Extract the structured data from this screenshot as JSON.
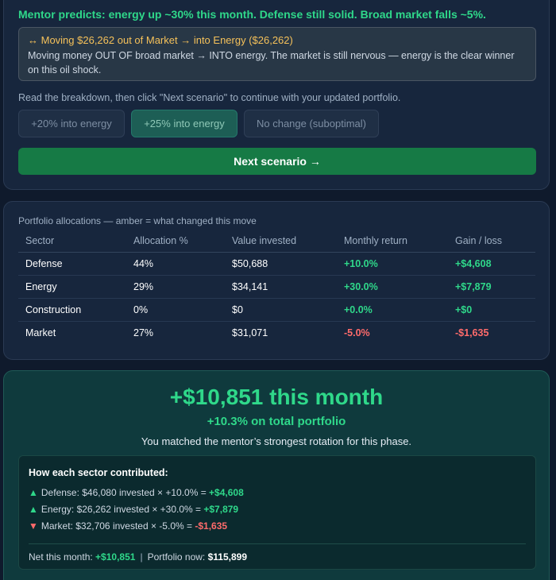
{
  "mentor": {
    "headline": "Mentor predicts: energy up ~30% this month. Defense still solid. Broad market falls ~5%."
  },
  "move": {
    "title": "↔ Moving $26,262 out of Market → into Energy ($26,262)",
    "body": "Moving money OUT OF broad market → INTO energy. The market is still nervous — energy is the clear winner on this oil shock."
  },
  "instruction": "Read the breakdown, then click \"Next scenario\" to continue with your updated portfolio.",
  "choices": [
    {
      "label": "+20% into energy",
      "selected": false
    },
    {
      "label": "+25% into energy",
      "selected": true
    },
    {
      "label": "No change (suboptimal)",
      "selected": false
    }
  ],
  "next_button": "Next scenario →",
  "table": {
    "caption": "Portfolio allocations — amber = what changed this move",
    "headers": [
      "Sector",
      "Allocation %",
      "Value invested",
      "Monthly return",
      "Gain / loss"
    ],
    "rows": [
      {
        "sector": "Defense",
        "allocation": "44%",
        "value": "$50,688",
        "return": "+10.0%",
        "gain": "+$4,608"
      },
      {
        "sector": "Energy",
        "allocation": "29%",
        "value": "$34,141",
        "return": "+30.0%",
        "gain": "+$7,879"
      },
      {
        "sector": "Construction",
        "allocation": "0%",
        "value": "$0",
        "return": "+0.0%",
        "gain": "+$0"
      },
      {
        "sector": "Market",
        "allocation": "27%",
        "value": "$31,071",
        "return": "-5.0%",
        "gain": "-$1,635"
      }
    ]
  },
  "result": {
    "big_gain": "+$10,851 this month",
    "pct_gain": "+10.3% on total portfolio",
    "message": "You matched the mentor’s strongest rotation for this phase.",
    "contrib_title": "How each sector contributed:",
    "contributions": [
      {
        "text": "Defense: $46,080 invested × +10.0% = ",
        "value": "+$4,608"
      },
      {
        "text": "Energy: $26,262 invested × +30.0% = ",
        "value": "+$7,879"
      },
      {
        "text": "Market: $32,706 invested × -5.0% = ",
        "value": "-$1,635"
      }
    ],
    "net_label": "Net this month: ",
    "net_value": "+$10,851",
    "separator": "|",
    "portfolio_label": "Portfolio now: ",
    "portfolio_value": "$115,899"
  },
  "colors": {
    "accent_green": "#2fd88a",
    "loss_red": "#ff6b6b",
    "amber": "#f5c15a",
    "button_green": "#167a45"
  }
}
